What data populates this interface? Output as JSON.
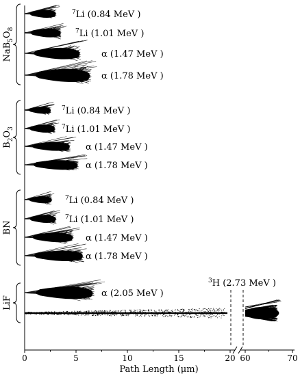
{
  "chart_data": {
    "type": "scatter",
    "title": "",
    "xlabel": "Path Length (μm)",
    "ylabel": "",
    "x_axis": {
      "segments": [
        {
          "range": [
            0,
            20
          ],
          "ticks": [
            "0",
            "5",
            "10",
            "15",
            "20"
          ]
        },
        {
          "range": [
            60,
            70
          ],
          "ticks": [
            "60",
            "70"
          ]
        }
      ],
      "break_between": [
        20,
        60
      ]
    },
    "groups": [
      {
        "material": "NaB5O8",
        "label_main": "NaB",
        "label_sub1": "5",
        "label_o": "O",
        "label_sub2": "8",
        "tracks": [
          {
            "ion": "7Li",
            "energy": "0.84 MeV",
            "label_sup": "7",
            "label_rest": "Li (0.84 MeV )",
            "path_length_um": 3.1
          },
          {
            "ion": "7Li",
            "energy": "1.01 MeV",
            "label_sup": "7",
            "label_rest": "Li (1.01 MeV )",
            "path_length_um": 3.6
          },
          {
            "ion": "α",
            "energy": "1.47 MeV",
            "label_sup": "",
            "label_rest": "α (1.47 MeV )",
            "path_length_um": 5.5
          },
          {
            "ion": "α",
            "energy": "1.78 MeV",
            "label_sup": "",
            "label_rest": "α (1.78 MeV )",
            "path_length_um": 6.5
          }
        ]
      },
      {
        "material": "B2O3",
        "label_main": "B",
        "label_sub1": "2",
        "label_o": "O",
        "label_sub2": "3",
        "tracks": [
          {
            "ion": "7Li",
            "energy": "0.84 MeV",
            "label_sup": "7",
            "label_rest": "Li (0.84 MeV )",
            "path_length_um": 2.6
          },
          {
            "ion": "7Li",
            "energy": "1.01 MeV",
            "label_sup": "7",
            "label_rest": "Li (1.01 MeV )",
            "path_length_um": 3.0
          },
          {
            "ion": "α",
            "energy": "1.47 MeV",
            "label_sup": "",
            "label_rest": "α (1.47 MeV )",
            "path_length_um": 4.5
          },
          {
            "ion": "α",
            "energy": "1.78 MeV",
            "label_sup": "",
            "label_rest": "α (1.78 MeV )",
            "path_length_um": 5.3
          }
        ]
      },
      {
        "material": "BN",
        "label_main": "BN",
        "label_sub1": "",
        "label_o": "",
        "label_sub2": "",
        "tracks": [
          {
            "ion": "7Li",
            "energy": "0.84 MeV",
            "label_sup": "7",
            "label_rest": "Li (0.84 MeV )",
            "path_length_um": 2.7
          },
          {
            "ion": "7Li",
            "energy": "1.01 MeV",
            "label_sup": "7",
            "label_rest": "Li (1.01 MeV )",
            "path_length_um": 3.1
          },
          {
            "ion": "α",
            "energy": "1.47 MeV",
            "label_sup": "",
            "label_rest": "α (1.47 MeV )",
            "path_length_um": 4.8
          },
          {
            "ion": "α",
            "energy": "1.78 MeV",
            "label_sup": "",
            "label_rest": "α (1.78 MeV )",
            "path_length_um": 5.8
          }
        ]
      },
      {
        "material": "LiF",
        "label_main": "LiF",
        "label_sub1": "",
        "label_o": "",
        "label_sub2": "",
        "tracks": [
          {
            "ion": "α",
            "energy": "2.05 MeV",
            "label_sup": "",
            "label_rest": "α (2.05 MeV )",
            "path_length_um": 6.8
          },
          {
            "ion": "3H",
            "energy": "2.73 MeV",
            "label_sup": "3",
            "label_rest": "H (2.73 MeV )",
            "path_length_um": 66
          }
        ]
      }
    ],
    "grid": false
  }
}
